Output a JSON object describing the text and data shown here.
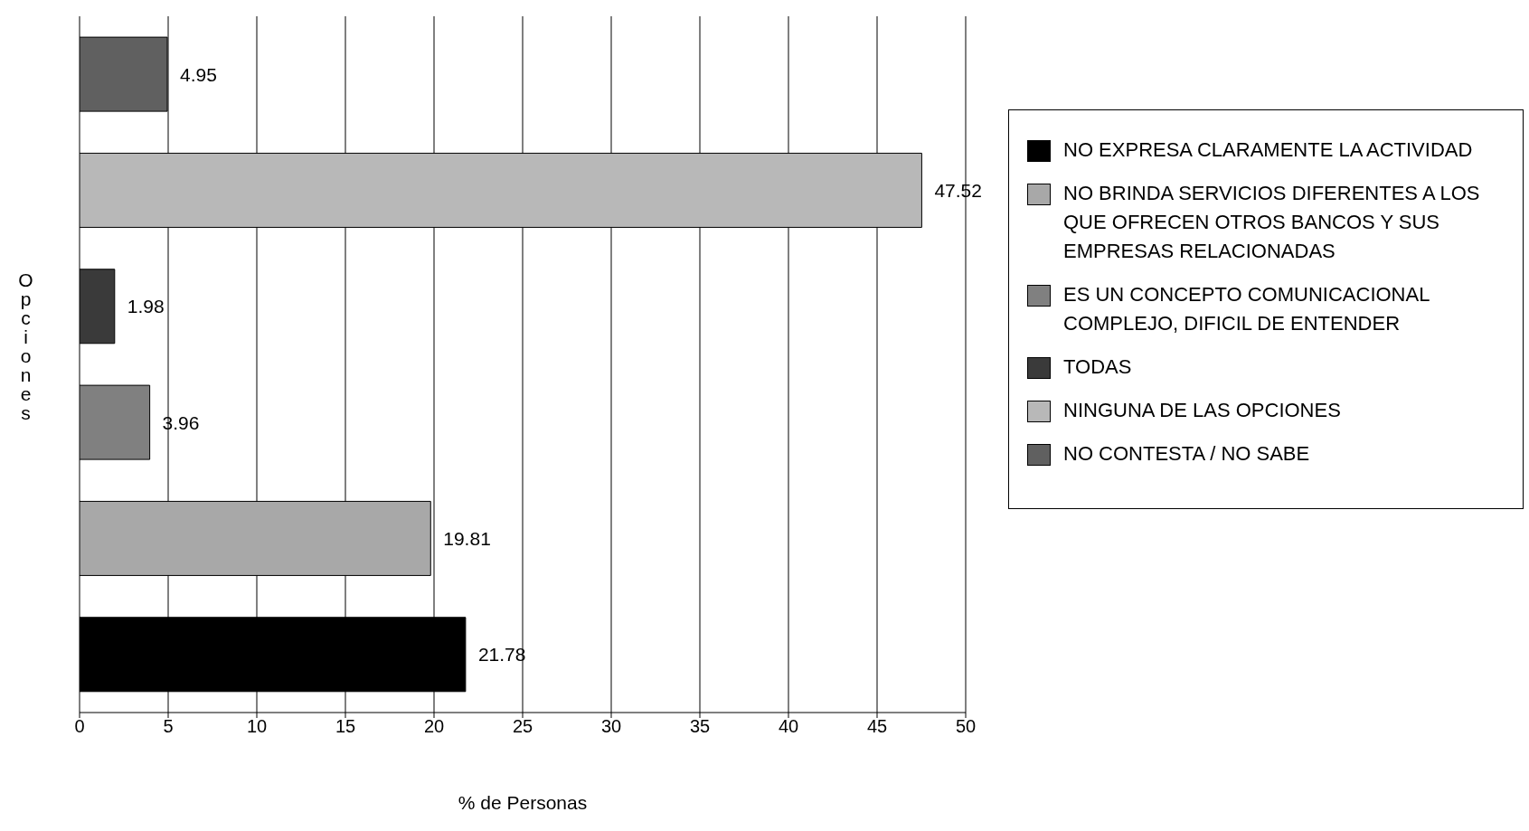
{
  "chart_data": {
    "type": "bar",
    "orientation": "horizontal",
    "stacked": true,
    "categories": [
      null,
      null,
      null,
      null,
      null,
      null
    ],
    "series": [
      {
        "name": "NO EXPRESA CLARAMENTE LA ACTIVIDAD",
        "color": "#000000",
        "values": [
          null,
          null,
          null,
          null,
          null,
          21.78
        ]
      },
      {
        "name": "NO BRINDA SERVICIOS DIFERENTES A LOS QUE OFRECEN OTROS BANCOS Y SUS EMPRESAS RELACIONADAS",
        "color": "#a8a8a8",
        "values": [
          null,
          null,
          null,
          null,
          19.81,
          null
        ]
      },
      {
        "name": "ES UN CONCEPTO COMUNICACIONAL COMPLEJO, DIFICIL DE ENTENDER",
        "color": "#808080",
        "values": [
          null,
          null,
          null,
          3.96,
          null,
          null
        ]
      },
      {
        "name": "TODAS",
        "color": "#3a3a3a",
        "values": [
          null,
          null,
          1.98,
          null,
          null,
          null
        ]
      },
      {
        "name": "NINGUNA DE LAS OPCIONES",
        "color": "#b8b8b8",
        "values": [
          null,
          47.52,
          null,
          null,
          null,
          null
        ]
      },
      {
        "name": "NO CONTESTA / NO SABE",
        "color": "#606060",
        "values": [
          4.95,
          null,
          null,
          null,
          null,
          null
        ]
      }
    ],
    "xlim": [
      0,
      50
    ],
    "xticks": [
      0,
      5,
      10,
      15,
      20,
      25,
      30,
      35,
      40,
      45,
      50
    ],
    "xlabel": "% de Personas",
    "ylabel": "Opciones",
    "grid": "x",
    "legend": "right",
    "data_labels": true
  }
}
